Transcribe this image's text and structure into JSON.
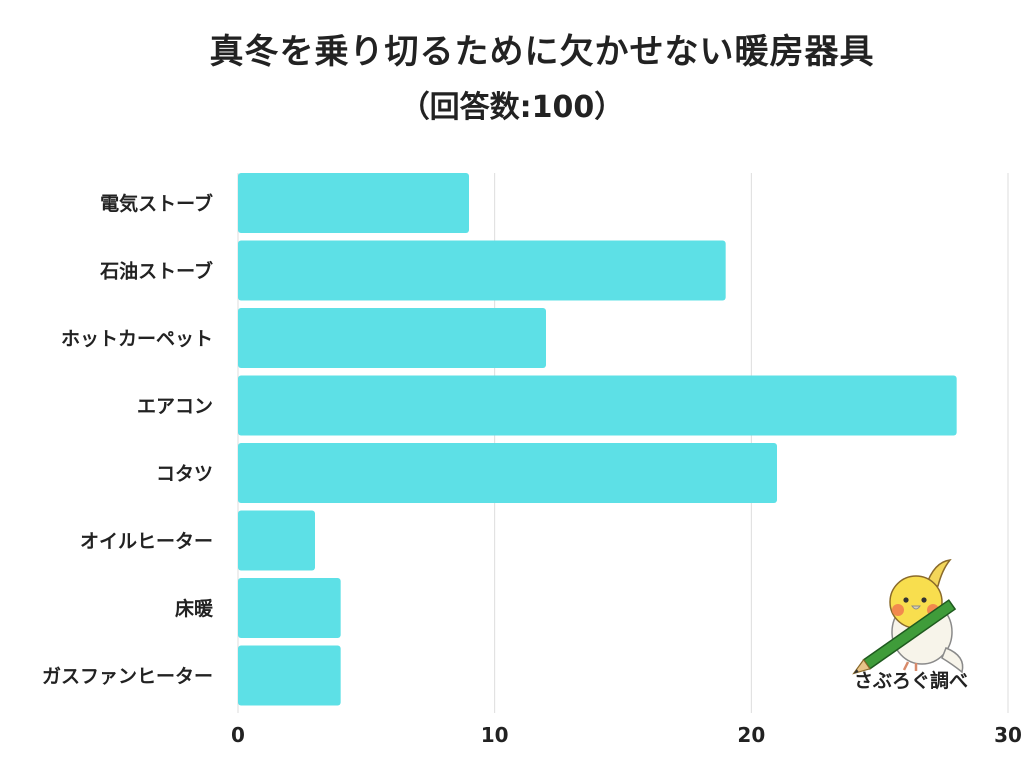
{
  "title": "真冬を乗り切るために欠かせない暖房器具",
  "subtitle": "（回答数:100）",
  "colors": {
    "bar": "#5de0e6",
    "grid": "#dddddd",
    "text": "#222222"
  },
  "watermark": {
    "label": "さぶろぐ調べ",
    "icon": "bird-with-pencil-icon"
  },
  "chart_data": {
    "type": "bar",
    "orientation": "horizontal",
    "categories": [
      "電気ストーブ",
      "石油ストーブ",
      "ホットカーペット",
      "エアコン",
      "コタツ",
      "オイルヒーター",
      "床暖",
      "ガスファンヒーター"
    ],
    "values": [
      9,
      19,
      12,
      28,
      21,
      3,
      4,
      4
    ],
    "title": "真冬を乗り切るために欠かせない暖房器具",
    "subtitle": "（回答数:100）",
    "xlim": [
      0,
      30
    ],
    "xticks": [
      0,
      10,
      20,
      30
    ],
    "grid": true
  }
}
